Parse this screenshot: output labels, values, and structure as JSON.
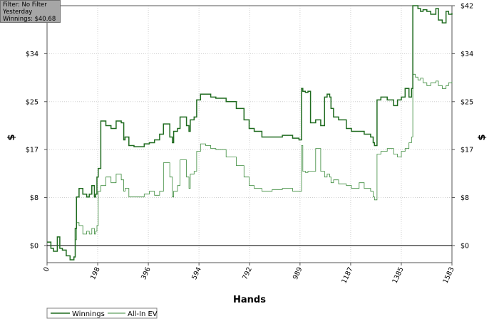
{
  "info": {
    "filter": "Filter: No Filter",
    "period": "Yesterday",
    "winnings": "Winnings: $40.68"
  },
  "colors": {
    "winnings": "#1f6b1f",
    "all_in_ev": "#3a8a3a",
    "grid": "#d0d0d0",
    "zero_line": "#000000"
  },
  "chart_data": {
    "type": "line",
    "xlabel": "Hands",
    "ylabel": "$",
    "ylim": [
      -3,
      42
    ],
    "xlim": [
      0,
      1583
    ],
    "x_ticks": [
      {
        "value": 0,
        "label": "0"
      },
      {
        "value": 198,
        "label": "198"
      },
      {
        "value": 396,
        "label": "396"
      },
      {
        "value": 594,
        "label": "594"
      },
      {
        "value": 792,
        "label": "792"
      },
      {
        "value": 989,
        "label": "989"
      },
      {
        "value": 1187,
        "label": "1187"
      },
      {
        "value": 1385,
        "label": "1385"
      },
      {
        "value": 1583,
        "label": "1583"
      }
    ],
    "y_ticks": [
      {
        "value": 0,
        "label": "$0"
      },
      {
        "value": 8.4,
        "label": "$8"
      },
      {
        "value": 16.8,
        "label": "$17"
      },
      {
        "value": 25.2,
        "label": "$25"
      },
      {
        "value": 33.6,
        "label": "$34"
      },
      {
        "value": 42,
        "label": "$42"
      }
    ],
    "grid": true,
    "legend_position": "bottom-left",
    "series": [
      {
        "name": "Winnings",
        "x": [
          0,
          15,
          25,
          40,
          50,
          60,
          75,
          90,
          105,
          110,
          115,
          125,
          140,
          155,
          165,
          175,
          185,
          190,
          195,
          200,
          210,
          230,
          250,
          270,
          290,
          300,
          305,
          320,
          340,
          380,
          400,
          420,
          440,
          455,
          480,
          490,
          495,
          510,
          520,
          545,
          555,
          560,
          575,
          585,
          600,
          620,
          640,
          660,
          700,
          740,
          770,
          790,
          810,
          840,
          880,
          920,
          960,
          985,
          995,
          1000,
          1010,
          1020,
          1030,
          1050,
          1070,
          1085,
          1095,
          1105,
          1110,
          1120,
          1140,
          1170,
          1190,
          1220,
          1240,
          1265,
          1275,
          1280,
          1290,
          1305,
          1330,
          1355,
          1370,
          1385,
          1400,
          1415,
          1425,
          1430,
          1440,
          1450,
          1460,
          1470,
          1485,
          1500,
          1520,
          1530,
          1545,
          1560,
          1570,
          1583
        ],
        "values": [
          0.6,
          -0.5,
          -1.0,
          1.5,
          -0.5,
          -0.8,
          -1.8,
          -2.5,
          -2.0,
          3.0,
          8.5,
          10.0,
          9.0,
          8.5,
          9.0,
          10.5,
          8.5,
          9.0,
          12.0,
          13.5,
          21.8,
          21.0,
          20.5,
          21.8,
          21.5,
          18.5,
          19.0,
          17.5,
          17.3,
          17.8,
          18.0,
          18.5,
          19.5,
          21.3,
          19.0,
          18.0,
          20.0,
          20.5,
          22.5,
          21.0,
          20.0,
          22.0,
          22.5,
          25.5,
          26.5,
          26.5,
          26.0,
          25.8,
          25.2,
          24.0,
          22.0,
          20.5,
          20.0,
          19.0,
          19.0,
          19.3,
          18.8,
          18.5,
          27.5,
          27.0,
          26.8,
          27.0,
          21.5,
          22.0,
          21.0,
          26.0,
          26.5,
          26.0,
          24.0,
          22.5,
          22.0,
          20.5,
          20.0,
          20.0,
          19.5,
          19.0,
          18.0,
          17.5,
          25.5,
          26.0,
          25.5,
          24.5,
          25.5,
          26.0,
          27.5,
          26.0,
          27.5,
          42.0,
          42.0,
          41.5,
          41.0,
          41.3,
          41.0,
          40.5,
          41.5,
          39.5,
          39.0,
          41.0,
          40.5,
          40.7
        ]
      },
      {
        "name": "All-In EV",
        "x": [
          0,
          15,
          25,
          40,
          50,
          60,
          75,
          90,
          105,
          110,
          115,
          125,
          140,
          155,
          165,
          175,
          185,
          190,
          195,
          200,
          210,
          230,
          250,
          270,
          290,
          300,
          305,
          320,
          340,
          380,
          400,
          420,
          440,
          455,
          480,
          490,
          495,
          510,
          520,
          545,
          555,
          560,
          575,
          585,
          600,
          620,
          640,
          660,
          700,
          740,
          770,
          790,
          810,
          840,
          880,
          920,
          960,
          985,
          995,
          1000,
          1010,
          1020,
          1030,
          1050,
          1070,
          1085,
          1095,
          1105,
          1110,
          1120,
          1140,
          1170,
          1190,
          1220,
          1240,
          1265,
          1275,
          1280,
          1290,
          1305,
          1330,
          1355,
          1370,
          1385,
          1400,
          1415,
          1425,
          1430,
          1440,
          1450,
          1460,
          1470,
          1485,
          1500,
          1520,
          1530,
          1545,
          1560,
          1570,
          1583
        ],
        "values": [
          0.6,
          -0.5,
          -1.0,
          1.5,
          -0.5,
          -0.8,
          -1.8,
          -2.5,
          -2.0,
          1.0,
          4.0,
          3.5,
          2.0,
          2.5,
          2.0,
          3.0,
          2.0,
          2.5,
          3.5,
          9.5,
          10.5,
          12.0,
          11.0,
          12.5,
          11.5,
          9.5,
          10.0,
          8.5,
          8.5,
          9.0,
          9.5,
          8.8,
          9.5,
          14.5,
          12.0,
          8.5,
          9.5,
          10.5,
          15.0,
          12.0,
          10.0,
          12.5,
          13.0,
          16.5,
          17.8,
          17.5,
          17.0,
          16.8,
          15.5,
          14.0,
          12.0,
          10.5,
          10.0,
          9.5,
          9.8,
          10.0,
          9.5,
          9.5,
          17.5,
          13.0,
          12.8,
          13.0,
          13.0,
          17.0,
          13.0,
          12.0,
          12.5,
          12.0,
          11.0,
          11.5,
          10.8,
          10.5,
          10.0,
          11.0,
          10.0,
          9.5,
          8.5,
          8.0,
          16.0,
          16.5,
          17.0,
          16.0,
          15.5,
          16.5,
          17.0,
          18.0,
          19.0,
          30.0,
          29.5,
          29.0,
          29.3,
          28.5,
          28.0,
          28.5,
          28.8,
          28.0,
          27.5,
          28.0,
          28.5,
          28.7
        ]
      }
    ]
  }
}
